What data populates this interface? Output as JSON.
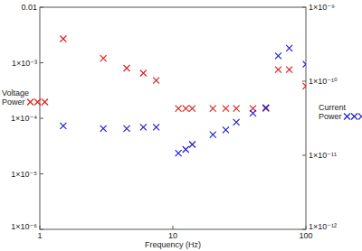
{
  "chart_data": {
    "type": "scatter",
    "x_label": "Frequency (Hz)",
    "log": true,
    "grid": false,
    "xlim": [
      1,
      100
    ],
    "xticks": [
      1,
      10,
      100
    ],
    "ylim": [
      1e-06,
      0.01
    ],
    "yticks": [
      0.01,
      {
        "value": 0.001,
        "label": "1×10⁻³"
      },
      {
        "value": 0.0001,
        "label": "1×10⁻⁴"
      },
      {
        "value": 1e-05,
        "label": "1×10⁻⁵"
      },
      {
        "value": 1e-06,
        "label": "1×10⁻⁶"
      }
    ],
    "y2lim": [
      1e-12,
      1e-09
    ],
    "y2ticks": [
      {
        "value": 1e-09,
        "label": "1×10⁻⁹"
      },
      {
        "value": 1e-10,
        "label": "1×10⁻¹⁰"
      },
      {
        "value": 1e-11,
        "label": "1×10⁻¹¹"
      },
      {
        "value": 1e-12,
        "label": "1×10⁻¹²"
      }
    ],
    "series": [
      {
        "name": "Voltage Power",
        "color": "#e02020",
        "marker": "x",
        "x": [
          1.5,
          3,
          4.5,
          6,
          7.5,
          11,
          12.5,
          14,
          20,
          25,
          30,
          40,
          50,
          62,
          75,
          100
        ],
        "values": [
          0.0027,
          0.0012,
          0.0008,
          0.00065,
          0.00048,
          0.00015,
          0.00015,
          0.00015,
          0.00015,
          0.00015,
          0.00015,
          0.00015,
          0.00015,
          0.00075,
          0.00075,
          0.00038
        ]
      },
      {
        "name": "Current Power",
        "color": "#1f1fd6",
        "marker": "x",
        "axis": "y2",
        "x": [
          1.5,
          3,
          4.5,
          6,
          7.5,
          11,
          12.5,
          14,
          20,
          25,
          30,
          40,
          50,
          62,
          75,
          100
        ],
        "values": [
          2.5e-11,
          2.3e-11,
          2.3e-11,
          2.4e-11,
          2.4e-11,
          1.07e-11,
          1.2e-11,
          1.4e-11,
          1.9e-11,
          2.2e-11,
          2.8e-11,
          3.7e-11,
          4.4e-11,
          2.2e-10,
          2.8e-10,
          1.7e-10
        ]
      }
    ]
  }
}
